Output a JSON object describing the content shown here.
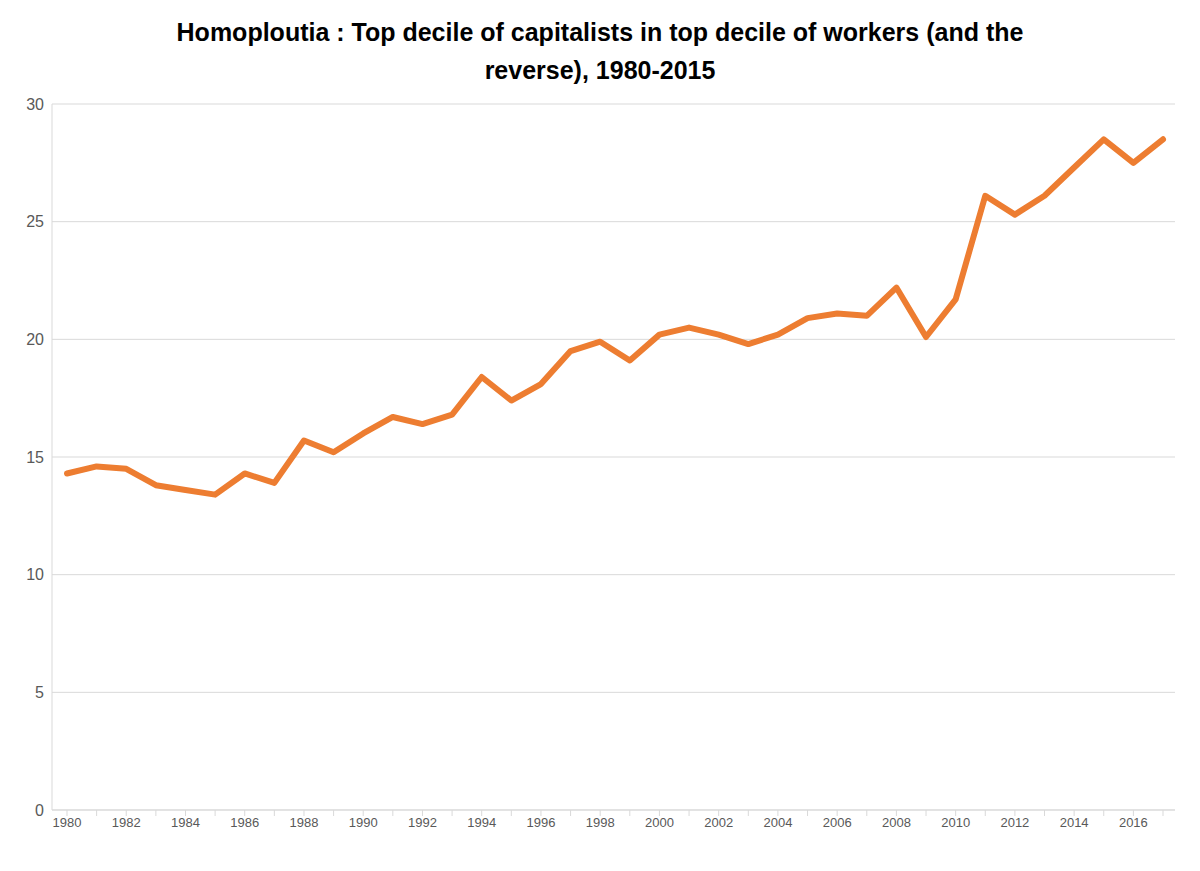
{
  "chart_data": {
    "type": "line",
    "title": "Homoploutia : Top decile of capitalists in top decile of workers (and the reverse), 1980-2015",
    "categories": [
      "1980",
      null,
      "1982",
      null,
      "1984",
      null,
      "1986",
      null,
      "1988",
      null,
      "1990",
      null,
      "1992",
      null,
      "1994",
      null,
      "1996",
      null,
      "1998",
      null,
      "2000",
      null,
      "2002",
      null,
      "2004",
      null,
      "2006",
      null,
      "2008",
      null,
      "2010",
      null,
      "2012",
      null,
      "2014",
      null,
      "2016",
      null
    ],
    "values": [
      14.3,
      14.6,
      14.5,
      13.8,
      13.6,
      13.4,
      14.3,
      13.9,
      15.7,
      15.2,
      16.0,
      16.7,
      16.4,
      16.8,
      18.4,
      17.4,
      18.1,
      19.5,
      19.9,
      19.1,
      20.2,
      20.5,
      20.2,
      19.8,
      20.2,
      20.9,
      21.1,
      21.0,
      22.2,
      20.1,
      21.7,
      26.1,
      25.3,
      26.1,
      27.3,
      28.5,
      27.5,
      28.5
    ],
    "color": "#ed7d31",
    "ylim": [
      0,
      30
    ],
    "yticks": [
      0,
      5,
      10,
      15,
      20,
      25,
      30
    ],
    "grid": true,
    "marker": "none"
  }
}
